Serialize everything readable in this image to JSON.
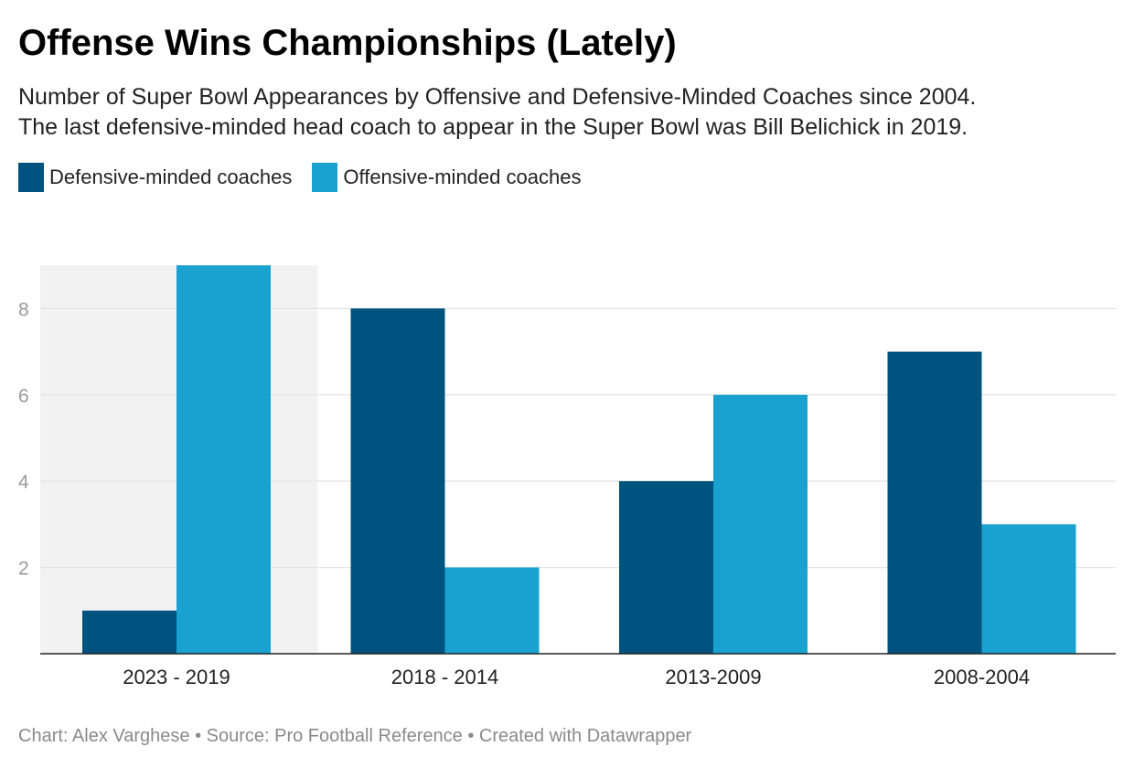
{
  "title": "Offense Wins Championships (Lately)",
  "subtitle": {
    "line1": "Number of Super Bowl Appearances by Offensive and Defensive-Minded Coaches since 2004.",
    "line2": "The last defensive-minded head coach to appear in the Super Bowl was Bill Belichick in 2019."
  },
  "legend": [
    {
      "label": "Defensive-minded coaches",
      "color": "#00537e"
    },
    {
      "label": "Offensive-minded coaches",
      "color": "#19a1cf"
    }
  ],
  "footer": "Chart: Alex Varghese • Source: Pro Football Reference • Created with Datawrapper",
  "chart_data": {
    "type": "bar",
    "categories": [
      "2023 - 2019",
      "2018 - 2014",
      "2013-2009",
      "2008-2004"
    ],
    "series": [
      {
        "name": "Defensive-minded coaches",
        "values": [
          1,
          8,
          4,
          7
        ],
        "color": "#00537e"
      },
      {
        "name": "Offensive-minded coaches",
        "values": [
          9,
          2,
          6,
          3
        ],
        "color": "#19a1cf"
      }
    ],
    "yticks": [
      2,
      4,
      6,
      8
    ],
    "ylim": [
      0,
      9
    ],
    "grid": true,
    "highlight_category": "2023 - 2019",
    "highlight_color": "#f2f2f2",
    "legend_position": "top-left",
    "xlabel": "",
    "ylabel": ""
  }
}
